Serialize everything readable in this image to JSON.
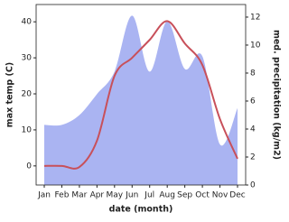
{
  "chart_data": {
    "type": "combo",
    "x_label": "date (month)",
    "y_label": "max temp (C)",
    "y2_label": "med. precipitation (kg/m2)",
    "categories": [
      "Jan",
      "Feb",
      "Mar",
      "Apr",
      "May",
      "Jun",
      "Jul",
      "Aug",
      "Sep",
      "Oct",
      "Nov",
      "Dec"
    ],
    "series": [
      {
        "name": "med. precipitation",
        "type": "area",
        "axis": "y2",
        "color": "#aab4f2",
        "values": [
          4.3,
          4.3,
          5.0,
          6.5,
          8.1,
          12.1,
          8.1,
          11.7,
          8.3,
          9.2,
          2.9,
          5.5
        ]
      },
      {
        "name": "max temp",
        "type": "line",
        "color": "#c8505a",
        "values": [
          0,
          0,
          -0.3,
          7,
          25,
          30,
          35,
          40.2,
          34,
          28,
          13,
          2
        ]
      }
    ],
    "ylim": [
      -5.3,
      44.8
    ],
    "yticks": [
      0,
      10,
      20,
      30,
      40
    ],
    "y2lim": [
      0,
      12.9
    ],
    "y2ticks": [
      0,
      2,
      4,
      6,
      8,
      10,
      12
    ]
  }
}
